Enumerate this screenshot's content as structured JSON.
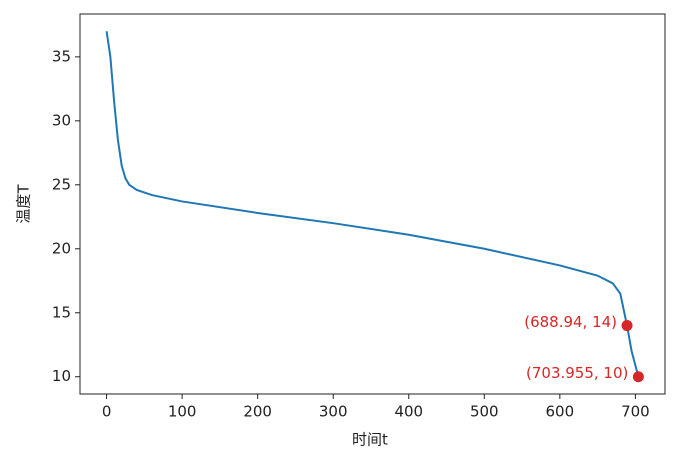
{
  "chart_data": {
    "type": "line",
    "xlabel": "时间t",
    "ylabel": "温度T",
    "xlim": [
      -35.2,
      739.2
    ],
    "ylim": [
      8.65,
      38.35
    ],
    "xticks": [
      0,
      100,
      200,
      300,
      400,
      500,
      600,
      700
    ],
    "yticks": [
      10,
      15,
      20,
      25,
      30,
      35
    ],
    "series": [
      {
        "type": "line",
        "color": "#1f77b4",
        "x": [
          0,
          5,
          10,
          15,
          20,
          25,
          30,
          40,
          60,
          100,
          200,
          300,
          400,
          500,
          600,
          650,
          670,
          680,
          688.94,
          695,
          703.955
        ],
        "values": [
          37,
          35,
          31.5,
          28.5,
          26.5,
          25.5,
          25,
          24.6,
          24.2,
          23.7,
          22.8,
          22,
          21.1,
          20,
          18.7,
          17.9,
          17.3,
          16.5,
          14,
          12,
          10
        ]
      },
      {
        "type": "scatter",
        "color": "#d62728",
        "x": [
          688.94,
          703.955
        ],
        "values": [
          14,
          10
        ],
        "value_labels": [
          "(688.94, 14)",
          "(703.955, 10)"
        ]
      }
    ]
  }
}
